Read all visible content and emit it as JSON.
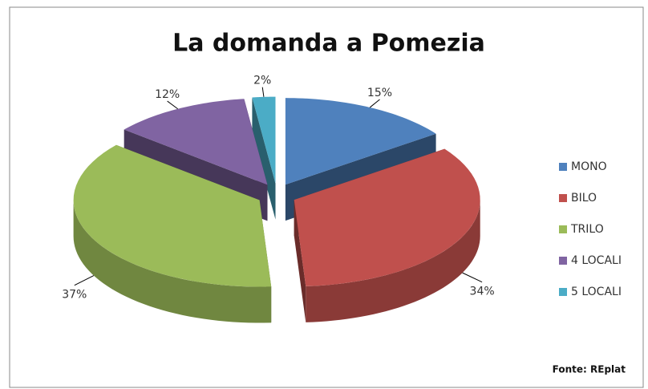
{
  "chart_data": {
    "type": "pie",
    "title": "La domanda a Pomezia",
    "categories": [
      "MONO",
      "BILO",
      "TRILO",
      "4 LOCALI",
      "5 LOCALI"
    ],
    "values": [
      15,
      34,
      37,
      12,
      2
    ],
    "value_labels": [
      "15%",
      "34%",
      "37%",
      "12%",
      "2%"
    ],
    "colors": [
      "#4f81bd",
      "#c0504d",
      "#9bbb59",
      "#8064a2",
      "#4bacc6"
    ],
    "legend": "right",
    "source": "Fonte: REplat"
  }
}
